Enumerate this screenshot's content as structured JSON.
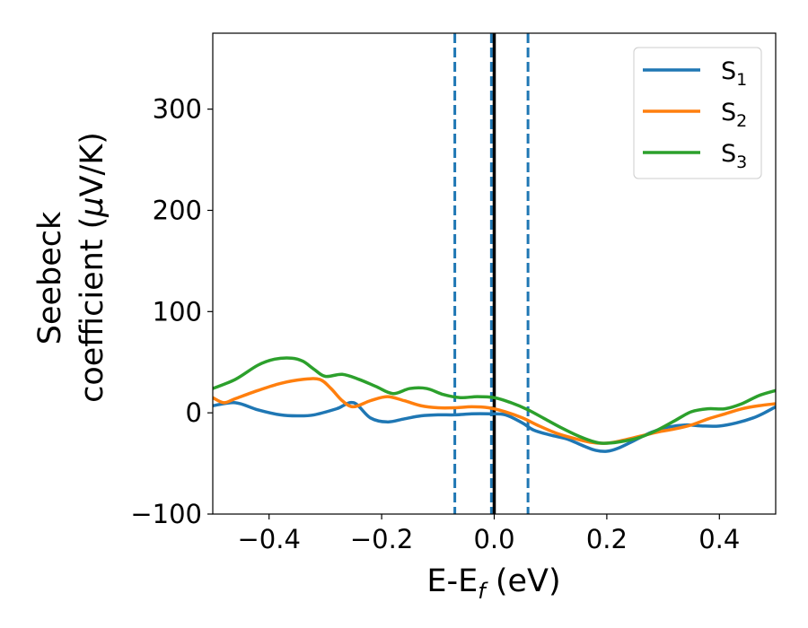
{
  "chart_data": {
    "type": "line",
    "title": "",
    "xlabel": "E-E",
    "xlabel_subscript": "f",
    "xlabel_unit": " (eV)",
    "ylabel_line1": "Seebeck",
    "ylabel_line2": "coefficient  (",
    "ylabel_mu": "μ",
    "ylabel_unit": "V/K)",
    "xlim": [
      -0.5,
      0.5
    ],
    "ylim": [
      -100,
      375
    ],
    "xticks": [
      -0.4,
      -0.2,
      0.0,
      0.2,
      0.4
    ],
    "xtick_labels": [
      "−0.4",
      "−0.2",
      "0.0",
      "0.2",
      "0.4"
    ],
    "yticks": [
      -100,
      0,
      100,
      200,
      300
    ],
    "ytick_labels": [
      "−100",
      "0",
      "100",
      "200",
      "300"
    ],
    "grid": false,
    "legend_position": "top-right",
    "vertical_lines": [
      {
        "x": -0.07,
        "style": "dashed",
        "color": "#1f77b4"
      },
      {
        "x": -0.005,
        "style": "dashed",
        "color": "#1f77b4"
      },
      {
        "x": 0.06,
        "style": "dashed",
        "color": "#1f77b4"
      },
      {
        "x": 0.0,
        "style": "solid",
        "color": "#000000"
      }
    ],
    "series": [
      {
        "name": "S",
        "subscript": "1",
        "color": "#1f77b4",
        "x": [
          -0.5,
          -0.46,
          -0.42,
          -0.38,
          -0.35,
          -0.32,
          -0.28,
          -0.25,
          -0.22,
          -0.19,
          -0.16,
          -0.13,
          -0.1,
          -0.07,
          -0.04,
          -0.01,
          0.02,
          0.05,
          0.07,
          0.1,
          0.13,
          0.16,
          0.18,
          0.2,
          0.22,
          0.25,
          0.28,
          0.31,
          0.34,
          0.37,
          0.4,
          0.43,
          0.46,
          0.48,
          0.5
        ],
        "y": [
          7,
          10,
          3,
          -2,
          -3,
          -2,
          4,
          10,
          -5,
          -9,
          -6,
          -3,
          -2,
          -2,
          -1,
          -1,
          -2,
          -10,
          -17,
          -22,
          -26,
          -33,
          -37,
          -38,
          -35,
          -27,
          -19,
          -14,
          -12,
          -13,
          -13,
          -10,
          -5,
          0,
          6
        ]
      },
      {
        "name": "S",
        "subscript": "2",
        "color": "#ff7f0e",
        "x": [
          -0.5,
          -0.48,
          -0.46,
          -0.42,
          -0.38,
          -0.34,
          -0.31,
          -0.29,
          -0.27,
          -0.25,
          -0.22,
          -0.19,
          -0.16,
          -0.13,
          -0.1,
          -0.07,
          -0.04,
          -0.01,
          0.02,
          0.05,
          0.08,
          0.11,
          0.14,
          0.17,
          0.2,
          0.23,
          0.26,
          0.29,
          0.32,
          0.35,
          0.38,
          0.41,
          0.44,
          0.47,
          0.5
        ],
        "y": [
          15,
          10,
          14,
          22,
          29,
          33,
          33,
          24,
          12,
          6,
          12,
          16,
          12,
          7,
          5,
          5,
          6,
          5,
          1,
          -5,
          -13,
          -20,
          -25,
          -29,
          -30,
          -27,
          -23,
          -19,
          -16,
          -12,
          -6,
          -1,
          4,
          7,
          9
        ]
      },
      {
        "name": "S",
        "subscript": "3",
        "color": "#2ca02c",
        "x": [
          -0.5,
          -0.46,
          -0.42,
          -0.39,
          -0.36,
          -0.34,
          -0.32,
          -0.3,
          -0.27,
          -0.24,
          -0.21,
          -0.18,
          -0.15,
          -0.12,
          -0.09,
          -0.06,
          -0.03,
          0.0,
          0.03,
          0.06,
          0.09,
          0.12,
          0.15,
          0.18,
          0.2,
          0.23,
          0.26,
          0.29,
          0.32,
          0.35,
          0.38,
          0.41,
          0.44,
          0.47,
          0.5
        ],
        "y": [
          24,
          33,
          47,
          53,
          54,
          51,
          43,
          36,
          38,
          33,
          26,
          19,
          24,
          24,
          18,
          15,
          16,
          15,
          10,
          3,
          -6,
          -15,
          -23,
          -29,
          -30,
          -28,
          -24,
          -17,
          -8,
          1,
          4,
          4,
          9,
          17,
          22
        ]
      }
    ]
  }
}
